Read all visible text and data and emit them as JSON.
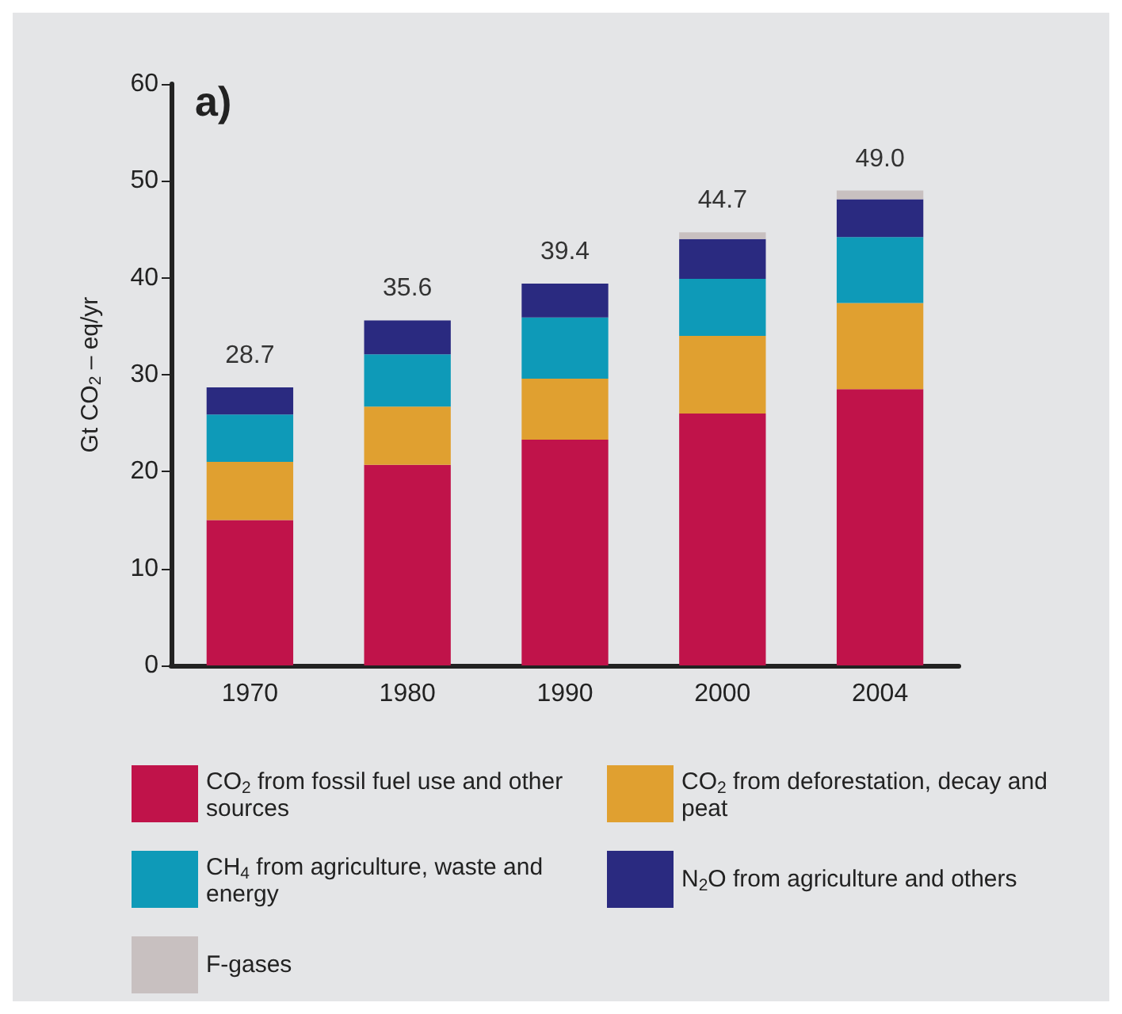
{
  "chart_data": {
    "type": "bar",
    "title": "a)",
    "ylabel": "Gt CO$_{2}$ – eq/yr",
    "categories": [
      "1970",
      "1980",
      "1990",
      "2000",
      "2004"
    ],
    "stacked": true,
    "series": [
      {
        "name": "CO$_{2}$ from fossil fuel use and other sources",
        "color": "#c0134a",
        "values": [
          15.0,
          20.7,
          23.3,
          26.0,
          28.5
        ]
      },
      {
        "name": "CO$_{2}$ from deforestation, decay and peat",
        "color": "#e0a030",
        "values": [
          6.0,
          6.0,
          6.3,
          8.0,
          8.9
        ]
      },
      {
        "name": "CH$_{4}$ from agriculture, waste and energy",
        "color": "#0e9ab8",
        "values": [
          4.9,
          5.4,
          6.3,
          5.9,
          6.8
        ]
      },
      {
        "name": "N$_{2}$O from agriculture and others",
        "color": "#2a2a80",
        "values": [
          2.8,
          3.5,
          3.5,
          4.1,
          3.9
        ]
      },
      {
        "name": "F-gases",
        "color": "#c8c0c0",
        "values": [
          null,
          null,
          null,
          0.7,
          0.9
        ]
      }
    ],
    "totals": [
      "28.7",
      "35.6",
      "39.4",
      "44.7",
      "49.0"
    ],
    "ylim": [
      0,
      60
    ],
    "yticks": [
      0,
      10,
      20,
      30,
      40,
      50,
      60
    ],
    "grid": false,
    "legend": "bottom"
  }
}
